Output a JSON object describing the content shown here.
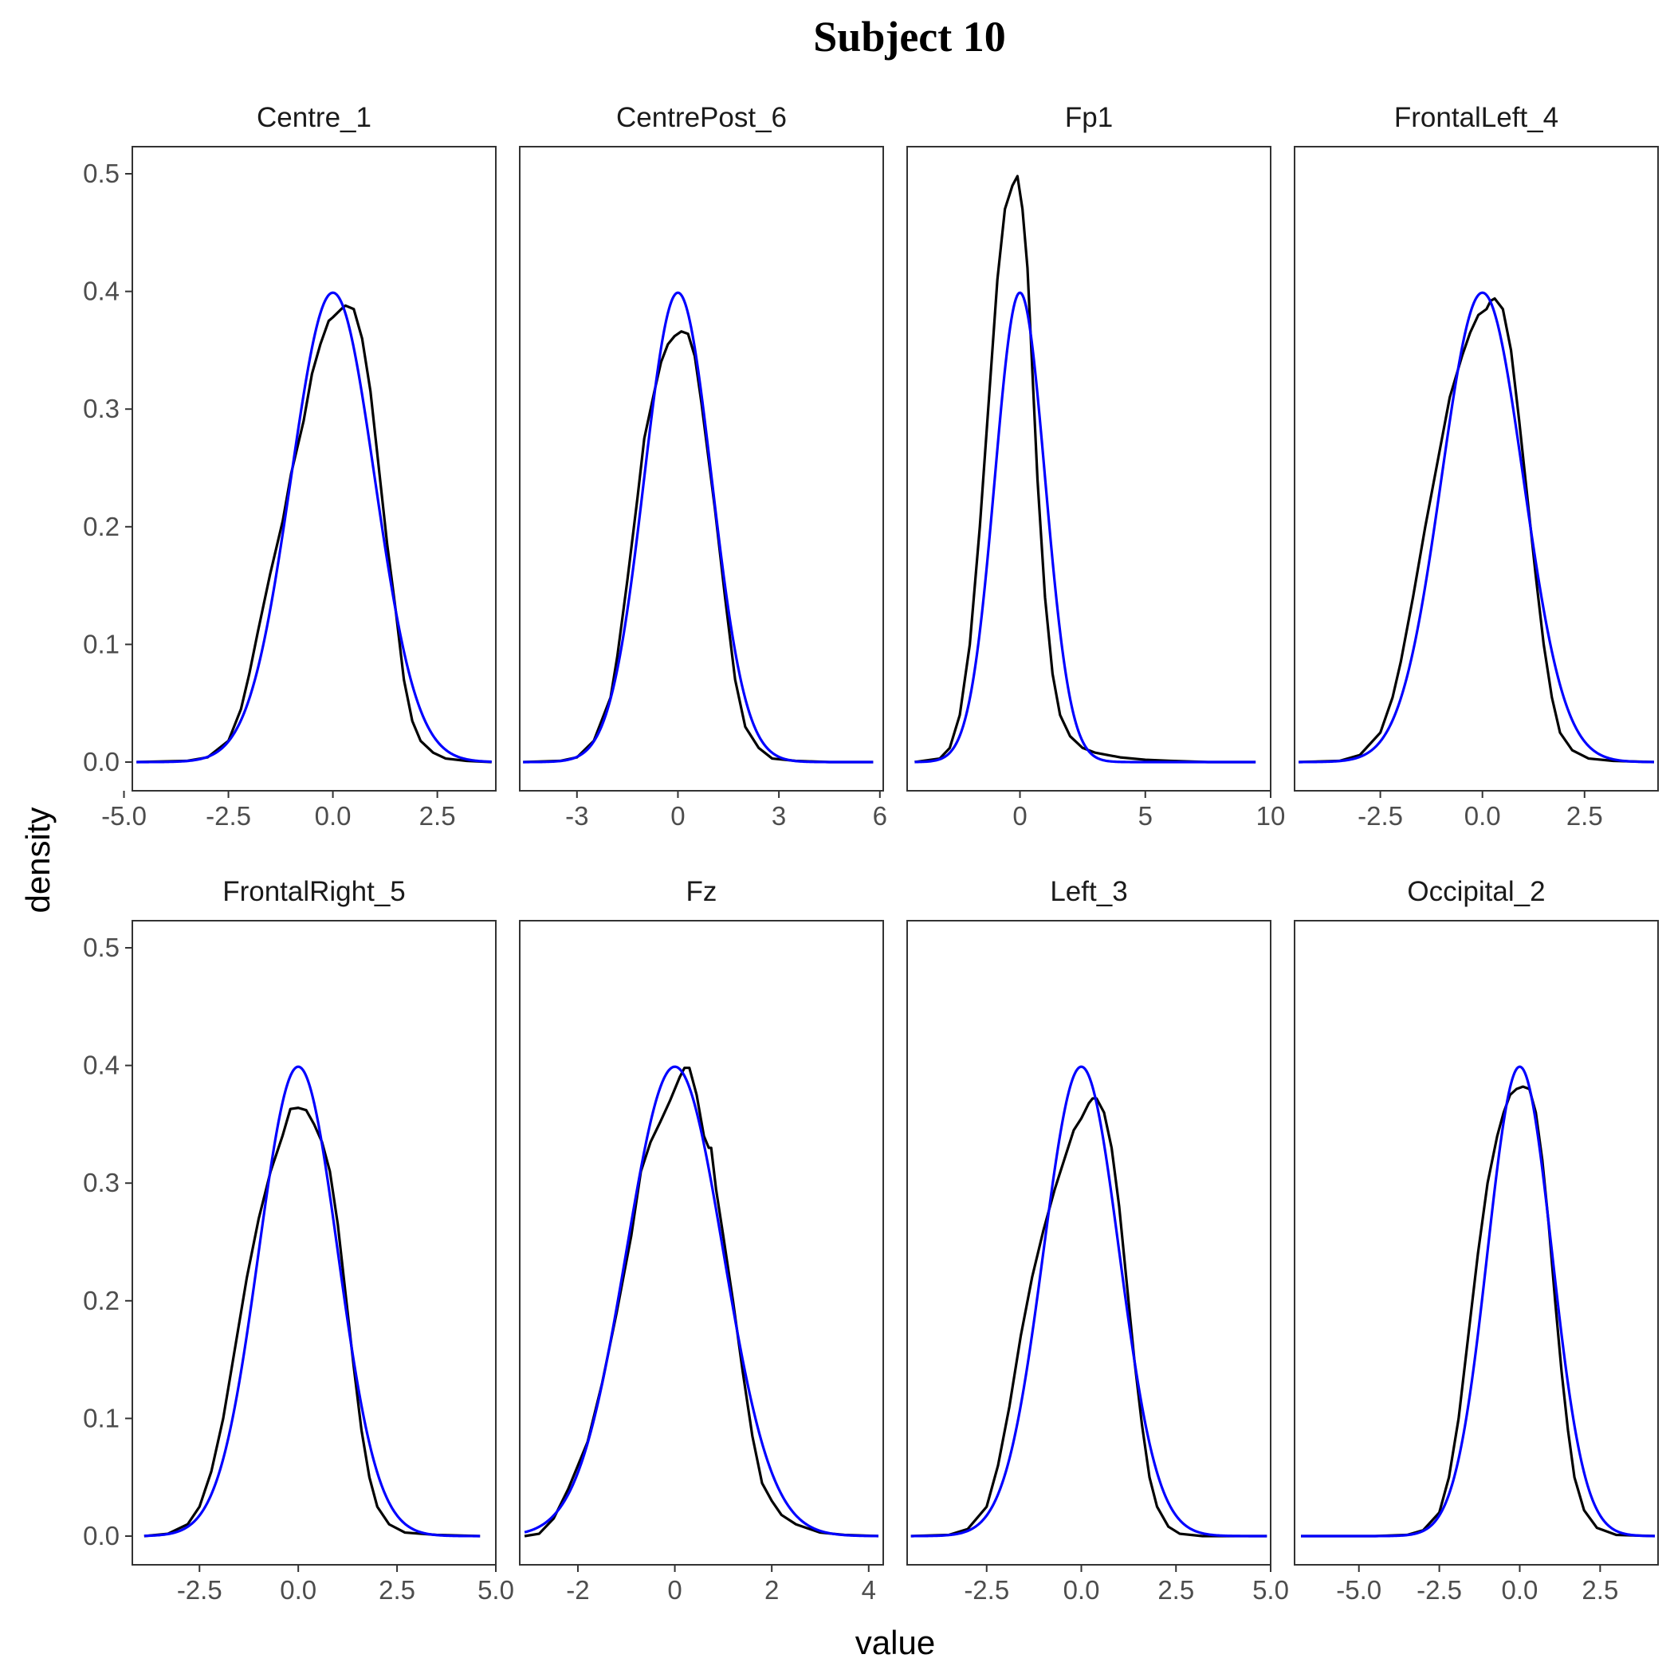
{
  "chart_data": {
    "type": "line",
    "title": "Subject 10",
    "xlabel": "value",
    "ylabel": "density",
    "grid": false,
    "legend": "none",
    "ylim": [
      0,
      0.5
    ],
    "yticks": [
      0.0,
      0.1,
      0.2,
      0.3,
      0.4,
      0.5
    ],
    "ytick_labels": [
      "0.0",
      "0.1",
      "0.2",
      "0.3",
      "0.4",
      "0.5"
    ],
    "series_colors": {
      "empirical": "#000000",
      "normal": "#0000ff"
    },
    "panels": [
      {
        "name": "Centre_1",
        "xlim": [
          -4.8,
          3.9
        ],
        "xticks": [
          -5,
          -2.5,
          0,
          2.5
        ],
        "xtick_labels": [
          "-5.0",
          "-2.5",
          "0.0",
          "2.5"
        ],
        "empirical": [
          [
            -4.7,
            0.0
          ],
          [
            -3.5,
            0.001
          ],
          [
            -3.0,
            0.004
          ],
          [
            -2.5,
            0.018
          ],
          [
            -2.2,
            0.045
          ],
          [
            -2.0,
            0.075
          ],
          [
            -1.8,
            0.11
          ],
          [
            -1.5,
            0.16
          ],
          [
            -1.2,
            0.205
          ],
          [
            -1.0,
            0.245
          ],
          [
            -0.7,
            0.29
          ],
          [
            -0.5,
            0.33
          ],
          [
            -0.3,
            0.355
          ],
          [
            -0.1,
            0.375
          ],
          [
            0.0,
            0.378
          ],
          [
            0.2,
            0.385
          ],
          [
            0.3,
            0.388
          ],
          [
            0.5,
            0.385
          ],
          [
            0.7,
            0.36
          ],
          [
            0.9,
            0.315
          ],
          [
            1.1,
            0.25
          ],
          [
            1.3,
            0.185
          ],
          [
            1.5,
            0.13
          ],
          [
            1.7,
            0.07
          ],
          [
            1.9,
            0.035
          ],
          [
            2.1,
            0.018
          ],
          [
            2.4,
            0.008
          ],
          [
            2.7,
            0.003
          ],
          [
            3.2,
            0.001
          ],
          [
            3.8,
            0.0
          ]
        ],
        "normal": {
          "mean": 0.0,
          "sd": 1.0
        }
      },
      {
        "name": "CentrePost_6",
        "xlim": [
          -4.7,
          6.1
        ],
        "xticks": [
          -3,
          0,
          3,
          6
        ],
        "xtick_labels": [
          "-3",
          "0",
          "3",
          "6"
        ],
        "empirical": [
          [
            -4.6,
            0.0
          ],
          [
            -3.5,
            0.001
          ],
          [
            -3.0,
            0.004
          ],
          [
            -2.5,
            0.018
          ],
          [
            -2.0,
            0.055
          ],
          [
            -1.8,
            0.09
          ],
          [
            -1.5,
            0.155
          ],
          [
            -1.2,
            0.225
          ],
          [
            -1.0,
            0.275
          ],
          [
            -0.7,
            0.315
          ],
          [
            -0.5,
            0.34
          ],
          [
            -0.3,
            0.355
          ],
          [
            -0.1,
            0.362
          ],
          [
            0.1,
            0.366
          ],
          [
            0.3,
            0.364
          ],
          [
            0.5,
            0.345
          ],
          [
            0.7,
            0.305
          ],
          [
            0.9,
            0.26
          ],
          [
            1.1,
            0.215
          ],
          [
            1.4,
            0.14
          ],
          [
            1.7,
            0.07
          ],
          [
            2.0,
            0.03
          ],
          [
            2.4,
            0.012
          ],
          [
            2.8,
            0.003
          ],
          [
            3.5,
            0.001
          ],
          [
            4.5,
            0.0
          ],
          [
            5.8,
            0.0
          ]
        ],
        "normal": {
          "mean": 0.0,
          "sd": 1.0
        }
      },
      {
        "name": "Fp1",
        "xlim": [
          -4.5,
          10.0
        ],
        "xticks": [
          0,
          5,
          10
        ],
        "xtick_labels": [
          "0",
          "5",
          "10"
        ],
        "empirical": [
          [
            -4.2,
            0.0
          ],
          [
            -3.2,
            0.003
          ],
          [
            -2.8,
            0.012
          ],
          [
            -2.4,
            0.04
          ],
          [
            -2.0,
            0.1
          ],
          [
            -1.6,
            0.2
          ],
          [
            -1.2,
            0.32
          ],
          [
            -0.9,
            0.41
          ],
          [
            -0.6,
            0.47
          ],
          [
            -0.3,
            0.49
          ],
          [
            -0.1,
            0.498
          ],
          [
            0.1,
            0.47
          ],
          [
            0.3,
            0.42
          ],
          [
            0.5,
            0.33
          ],
          [
            0.7,
            0.24
          ],
          [
            1.0,
            0.14
          ],
          [
            1.3,
            0.075
          ],
          [
            1.6,
            0.04
          ],
          [
            2.0,
            0.022
          ],
          [
            2.5,
            0.012
          ],
          [
            3.0,
            0.008
          ],
          [
            3.5,
            0.006
          ],
          [
            4.0,
            0.004
          ],
          [
            5.0,
            0.002
          ],
          [
            6.0,
            0.001
          ],
          [
            7.5,
            0.0
          ],
          [
            9.4,
            0.0
          ]
        ],
        "normal": {
          "mean": 0.0,
          "sd": 1.0
        }
      },
      {
        "name": "FrontalLeft_4",
        "xlim": [
          -4.6,
          4.3
        ],
        "xticks": [
          -2.5,
          0,
          2.5
        ],
        "xtick_labels": [
          "-2.5",
          "0.0",
          "2.5"
        ],
        "empirical": [
          [
            -4.5,
            0.0
          ],
          [
            -3.5,
            0.001
          ],
          [
            -3.0,
            0.006
          ],
          [
            -2.5,
            0.025
          ],
          [
            -2.2,
            0.055
          ],
          [
            -2.0,
            0.085
          ],
          [
            -1.7,
            0.14
          ],
          [
            -1.4,
            0.2
          ],
          [
            -1.1,
            0.255
          ],
          [
            -0.8,
            0.31
          ],
          [
            -0.5,
            0.345
          ],
          [
            -0.3,
            0.365
          ],
          [
            -0.1,
            0.38
          ],
          [
            0.1,
            0.385
          ],
          [
            0.2,
            0.392
          ],
          [
            0.3,
            0.394
          ],
          [
            0.5,
            0.385
          ],
          [
            0.7,
            0.35
          ],
          [
            0.9,
            0.29
          ],
          [
            1.1,
            0.225
          ],
          [
            1.3,
            0.16
          ],
          [
            1.5,
            0.1
          ],
          [
            1.7,
            0.055
          ],
          [
            1.9,
            0.025
          ],
          [
            2.2,
            0.01
          ],
          [
            2.6,
            0.003
          ],
          [
            3.2,
            0.001
          ],
          [
            4.2,
            0.0
          ]
        ],
        "normal": {
          "mean": 0.0,
          "sd": 1.0
        }
      },
      {
        "name": "FrontalRight_5",
        "xlim": [
          -4.2,
          5.0
        ],
        "xticks": [
          -2.5,
          0,
          2.5,
          5
        ],
        "xtick_labels": [
          "-2.5",
          "0.0",
          "2.5",
          "5.0"
        ],
        "empirical": [
          [
            -3.9,
            0.0
          ],
          [
            -3.3,
            0.002
          ],
          [
            -2.8,
            0.01
          ],
          [
            -2.5,
            0.025
          ],
          [
            -2.2,
            0.055
          ],
          [
            -1.9,
            0.1
          ],
          [
            -1.6,
            0.16
          ],
          [
            -1.3,
            0.22
          ],
          [
            -1.0,
            0.27
          ],
          [
            -0.7,
            0.31
          ],
          [
            -0.4,
            0.34
          ],
          [
            -0.2,
            0.363
          ],
          [
            0.0,
            0.364
          ],
          [
            0.2,
            0.362
          ],
          [
            0.4,
            0.35
          ],
          [
            0.6,
            0.335
          ],
          [
            0.8,
            0.31
          ],
          [
            1.0,
            0.265
          ],
          [
            1.2,
            0.205
          ],
          [
            1.4,
            0.145
          ],
          [
            1.6,
            0.09
          ],
          [
            1.8,
            0.05
          ],
          [
            2.0,
            0.025
          ],
          [
            2.3,
            0.01
          ],
          [
            2.7,
            0.003
          ],
          [
            3.5,
            0.001
          ],
          [
            4.6,
            0.0
          ]
        ],
        "normal": {
          "mean": 0.0,
          "sd": 1.0
        }
      },
      {
        "name": "Fz",
        "xlim": [
          -3.2,
          4.3
        ],
        "xticks": [
          -2,
          0,
          2,
          4
        ],
        "xtick_labels": [
          "-2",
          "0",
          "2",
          "4"
        ],
        "empirical": [
          [
            -3.1,
            0.0
          ],
          [
            -2.8,
            0.002
          ],
          [
            -2.5,
            0.015
          ],
          [
            -2.2,
            0.04
          ],
          [
            -2.0,
            0.06
          ],
          [
            -1.8,
            0.08
          ],
          [
            -1.5,
            0.13
          ],
          [
            -1.2,
            0.19
          ],
          [
            -0.9,
            0.255
          ],
          [
            -0.7,
            0.31
          ],
          [
            -0.5,
            0.335
          ],
          [
            -0.3,
            0.352
          ],
          [
            -0.1,
            0.37
          ],
          [
            0.1,
            0.39
          ],
          [
            0.2,
            0.398
          ],
          [
            0.3,
            0.398
          ],
          [
            0.45,
            0.375
          ],
          [
            0.6,
            0.34
          ],
          [
            0.7,
            0.33
          ],
          [
            0.75,
            0.33
          ],
          [
            0.85,
            0.295
          ],
          [
            1.0,
            0.255
          ],
          [
            1.2,
            0.2
          ],
          [
            1.4,
            0.14
          ],
          [
            1.6,
            0.085
          ],
          [
            1.8,
            0.045
          ],
          [
            2.0,
            0.03
          ],
          [
            2.2,
            0.018
          ],
          [
            2.5,
            0.01
          ],
          [
            3.0,
            0.003
          ],
          [
            3.5,
            0.001
          ],
          [
            4.2,
            0.0
          ]
        ],
        "normal": {
          "mean": 0.0,
          "sd": 1.0
        }
      },
      {
        "name": "Left_3",
        "xlim": [
          -4.6,
          5.0
        ],
        "xticks": [
          -2.5,
          0,
          2.5,
          5
        ],
        "xtick_labels": [
          "-2.5",
          "0.0",
          "2.5",
          "5.0"
        ],
        "empirical": [
          [
            -4.5,
            0.0
          ],
          [
            -3.5,
            0.001
          ],
          [
            -3.0,
            0.006
          ],
          [
            -2.5,
            0.025
          ],
          [
            -2.2,
            0.06
          ],
          [
            -1.9,
            0.11
          ],
          [
            -1.6,
            0.17
          ],
          [
            -1.3,
            0.22
          ],
          [
            -1.0,
            0.26
          ],
          [
            -0.7,
            0.295
          ],
          [
            -0.4,
            0.325
          ],
          [
            -0.2,
            0.345
          ],
          [
            0.0,
            0.355
          ],
          [
            0.2,
            0.368
          ],
          [
            0.3,
            0.372
          ],
          [
            0.4,
            0.372
          ],
          [
            0.6,
            0.36
          ],
          [
            0.8,
            0.33
          ],
          [
            1.0,
            0.28
          ],
          [
            1.2,
            0.215
          ],
          [
            1.4,
            0.15
          ],
          [
            1.6,
            0.095
          ],
          [
            1.8,
            0.05
          ],
          [
            2.0,
            0.025
          ],
          [
            2.3,
            0.008
          ],
          [
            2.6,
            0.002
          ],
          [
            3.2,
            0.0
          ],
          [
            4.9,
            0.0
          ]
        ],
        "normal": {
          "mean": 0.0,
          "sd": 1.0
        }
      },
      {
        "name": "Occipital_2",
        "xlim": [
          -7.0,
          4.3
        ],
        "xticks": [
          -5,
          -2.5,
          0,
          2.5
        ],
        "xtick_labels": [
          "-5.0",
          "-2.5",
          "0.0",
          "2.5"
        ],
        "empirical": [
          [
            -6.8,
            0.0
          ],
          [
            -4.5,
            0.0
          ],
          [
            -3.5,
            0.001
          ],
          [
            -3.0,
            0.005
          ],
          [
            -2.5,
            0.02
          ],
          [
            -2.2,
            0.05
          ],
          [
            -1.9,
            0.1
          ],
          [
            -1.6,
            0.17
          ],
          [
            -1.3,
            0.24
          ],
          [
            -1.0,
            0.3
          ],
          [
            -0.7,
            0.34
          ],
          [
            -0.5,
            0.36
          ],
          [
            -0.3,
            0.375
          ],
          [
            -0.1,
            0.38
          ],
          [
            0.1,
            0.382
          ],
          [
            0.3,
            0.38
          ],
          [
            0.5,
            0.36
          ],
          [
            0.7,
            0.32
          ],
          [
            0.9,
            0.265
          ],
          [
            1.1,
            0.2
          ],
          [
            1.3,
            0.14
          ],
          [
            1.5,
            0.09
          ],
          [
            1.7,
            0.05
          ],
          [
            2.0,
            0.022
          ],
          [
            2.4,
            0.007
          ],
          [
            3.0,
            0.001
          ],
          [
            4.2,
            0.0
          ]
        ],
        "normal": {
          "mean": 0.0,
          "sd": 1.0
        }
      }
    ]
  }
}
